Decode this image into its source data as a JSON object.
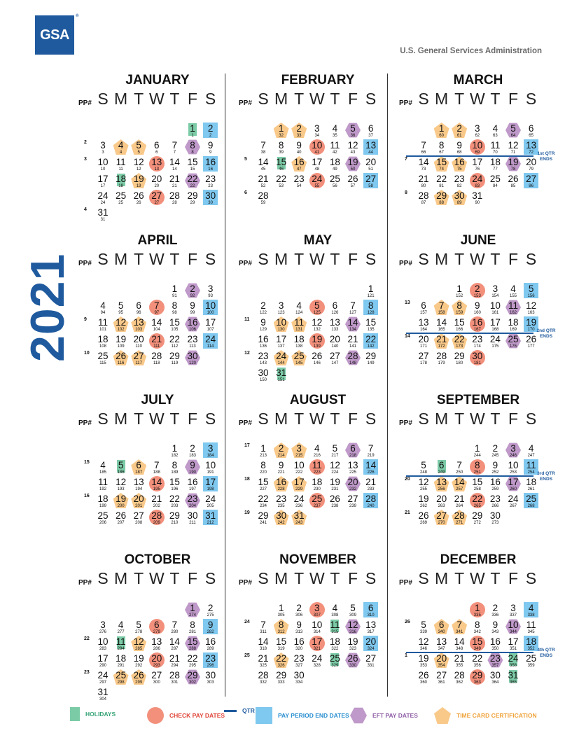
{
  "header": {
    "logo_text": "GSA",
    "agency": "U.S. General Services Administration"
  },
  "year": "2021",
  "colors": {
    "check": "#f2907c",
    "ppend": "#7fc8ef",
    "eft": "#bf99c9",
    "timecard": "#f9c98a",
    "holiday": "#7ccba7",
    "qtr": "#1f5a9e"
  },
  "pp_label": "PP#",
  "dow": [
    "S",
    "M",
    "T",
    "W",
    "T",
    "F",
    "S"
  ],
  "months": [
    {
      "name": "JANUARY",
      "start": 5,
      "days": 31,
      "first_pd": 1,
      "pp_rows": {
        "1": "2",
        "2": "3",
        "5": "4"
      },
      "marks": {
        "1": "hol",
        "2": "sq",
        "4": "pent",
        "5": "pent",
        "8": "hex",
        "13": "circ",
        "16": "sq",
        "18": "hol",
        "19": "pent",
        "22": "hex",
        "27": "circ",
        "30": "sq"
      }
    },
    {
      "name": "FEBRUARY",
      "start": 1,
      "days": 28,
      "first_pd": 32,
      "pp_rows": {
        "2": "5",
        "4": "6"
      },
      "marks": {
        "1": "pent",
        "2": "pent",
        "5": "hex",
        "10": "circ",
        "13": "sq",
        "15": "hol",
        "16": "pent",
        "19": "hex",
        "24": "circ",
        "27": "sq"
      }
    },
    {
      "name": "MARCH",
      "start": 1,
      "days": 31,
      "first_pd": 60,
      "pp_rows": {
        "2": "7",
        "4": "8"
      },
      "qtr": {
        "after_row": 1,
        "label": "1st QTR\nENDS"
      },
      "marks": {
        "1": "pent",
        "2": "pent",
        "5": "hex",
        "10": "circ",
        "13": "sq",
        "15": "pent",
        "16": "pent",
        "19": "hex",
        "24": "circ",
        "27": "sq",
        "29": "pent",
        "30": "pent"
      }
    },
    {
      "name": "APRIL",
      "start": 4,
      "days": 30,
      "first_pd": 91,
      "pp_rows": {
        "2": "9",
        "4": "10"
      },
      "marks": {
        "2": "hex",
        "7": "circ",
        "10": "sq",
        "12": "pent",
        "13": "pent",
        "16": "hex",
        "21": "circ",
        "24": "sq",
        "26": "pent",
        "27": "pent",
        "30": "hex"
      }
    },
    {
      "name": "MAY",
      "start": 6,
      "days": 31,
      "first_pd": 121,
      "pp_rows": {
        "2": "11",
        "4": "12"
      },
      "marks": {
        "5": "circ",
        "8": "sq",
        "10": "pent",
        "11": "pent",
        "14": "hex",
        "19": "circ",
        "22": "sq",
        "24": "pent",
        "25": "pent",
        "28": "hex",
        "31": "hol"
      }
    },
    {
      "name": "JUNE",
      "start": 2,
      "days": 30,
      "first_pd": 152,
      "pp_rows": {
        "1": "13",
        "3": "14"
      },
      "qtr": {
        "after_row": 2,
        "label": "2nd QTR\nENDS"
      },
      "marks": {
        "2": "circ",
        "5": "sq",
        "7": "pent",
        "8": "pent",
        "11": "hex",
        "16": "circ",
        "19": "sq",
        "21": "pent",
        "22": "pent",
        "25": "hex",
        "30": "circ"
      }
    },
    {
      "name": "JULY",
      "start": 4,
      "days": 31,
      "first_pd": 182,
      "pp_rows": {
        "1": "15",
        "3": "16"
      },
      "marks": {
        "3": "sq",
        "5": "hol",
        "6": "pent",
        "9": "hex",
        "14": "circ",
        "17": "sq",
        "19": "pent",
        "20": "pent",
        "23": "hex",
        "28": "circ",
        "31": "sq"
      }
    },
    {
      "name": "AUGUST",
      "start": 0,
      "days": 31,
      "first_pd": 213,
      "pp_rows": {
        "0": "17",
        "2": "18",
        "4": "19"
      },
      "marks": {
        "2": "pent",
        "3": "pent",
        "6": "hex",
        "11": "circ",
        "14": "sq",
        "16": "pent",
        "17": "pent",
        "20": "hex",
        "25": "circ",
        "28": "sq",
        "30": "pent",
        "31": "pent"
      }
    },
    {
      "name": "SEPTEMBER",
      "start": 3,
      "days": 30,
      "first_pd": 244,
      "pp_rows": {
        "2": "20",
        "4": "21"
      },
      "qtr": {
        "after_row": 1,
        "label": "3rd QTR\nENDS"
      },
      "marks": {
        "3": "hex",
        "6": "hol",
        "8": "circ",
        "11": "sq",
        "13": "pent",
        "14": "pent",
        "17": "hex",
        "22": "circ",
        "25": "sq",
        "27": "pent",
        "28": "pent"
      }
    },
    {
      "name": "OCTOBER",
      "start": 5,
      "days": 31,
      "first_pd": 274,
      "pp_rows": {
        "2": "22",
        "4": "23"
      },
      "marks": {
        "1": "hex",
        "6": "circ",
        "9": "sq",
        "11": "hol",
        "12": "pent",
        "15": "hex",
        "20": "circ",
        "23": "sq",
        "25": "pent",
        "26": "pent",
        "29": "hex"
      }
    },
    {
      "name": "NOVEMBER",
      "start": 1,
      "days": 30,
      "first_pd": 305,
      "pp_rows": {
        "1": "24",
        "3": "25"
      },
      "marks": {
        "3": "circ",
        "6": "sq",
        "8": "pent",
        "11": "hol",
        "12": "hex",
        "17": "circ",
        "20": "sq",
        "22": "pent",
        "25": "hol",
        "26": "hex"
      }
    },
    {
      "name": "DECEMBER",
      "start": 3,
      "days": 31,
      "first_pd": 335,
      "pp_rows": {
        "1": "26",
        "3": "1"
      },
      "qtr": {
        "after_row": 2,
        "label": "4th QTR\nENDS"
      },
      "marks": {
        "1": "circ",
        "4": "sq",
        "6": "pent",
        "7": "pent",
        "10": "hex",
        "15": "circ",
        "18": "sq",
        "20": "pent",
        "23": "hex",
        "24": "hol",
        "29": "circ",
        "31": "hol"
      }
    }
  ],
  "legend": [
    {
      "type": "hol",
      "label": "HOLIDAYS",
      "color": "#3aa57a"
    },
    {
      "type": "circ",
      "label": "CHECK PAY DATES",
      "color": "#e0463a"
    },
    {
      "type": "line",
      "label": "QTR",
      "color": "#1f5a9e"
    },
    {
      "type": "sq",
      "label": "PAY PERIOD END DATES",
      "color": "#2a8fd0"
    },
    {
      "type": "hex",
      "label": "EFT PAY DATES",
      "color": "#8e5ea6"
    },
    {
      "type": "pent",
      "label": "TIME CARD CERTIFICATION",
      "color": "#f0a23a"
    }
  ]
}
